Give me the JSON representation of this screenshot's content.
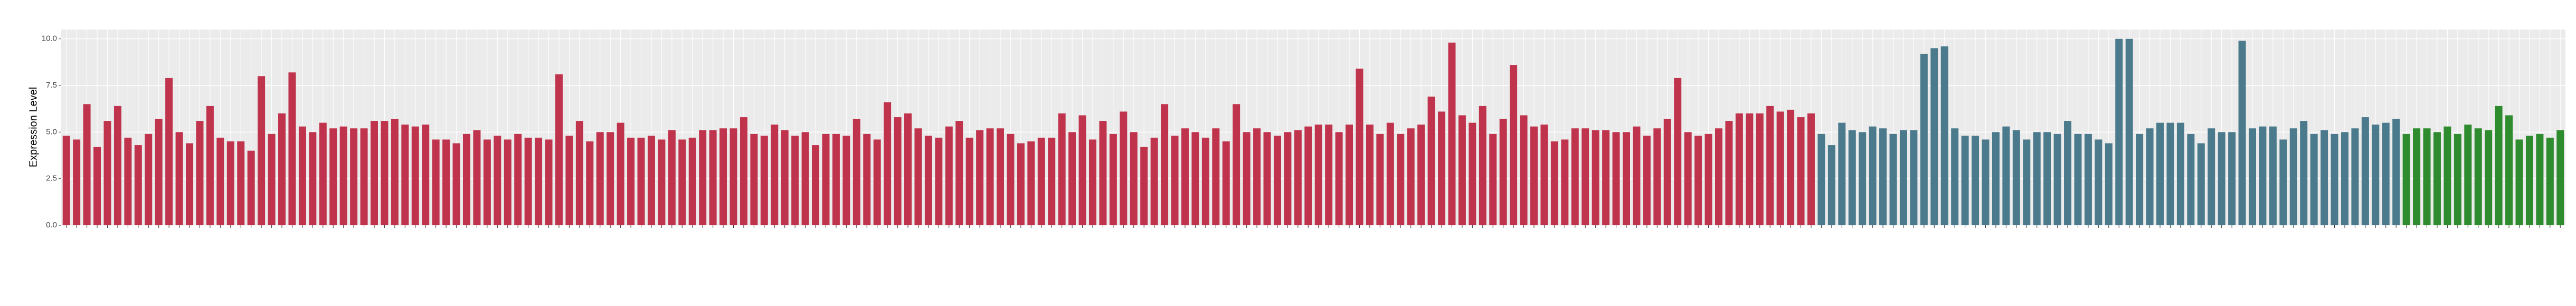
{
  "chart_data": {
    "type": "bar",
    "ylabel": "Expression Level",
    "ylim": [
      0,
      10.5
    ],
    "yticks": [
      {
        "value": 0,
        "label": "0.0"
      },
      {
        "value": 2.5,
        "label": "2.5"
      },
      {
        "value": 5,
        "label": "5.0"
      },
      {
        "value": 7.5,
        "label": "7.5"
      },
      {
        "value": 10,
        "label": "10.0"
      }
    ],
    "grid": true,
    "series": [
      {
        "color": "#c0334d",
        "values": [
          4.8,
          4.6,
          6.5,
          4.2,
          5.6,
          6.4,
          4.7,
          4.3,
          4.9,
          5.7,
          7.9,
          5.0,
          4.4,
          5.6,
          6.4,
          4.7,
          4.5,
          4.5,
          4.0,
          8.0,
          4.9,
          6.0,
          8.2,
          5.3,
          5.0,
          5.5,
          5.2,
          5.3,
          5.2,
          5.2,
          5.6,
          5.6,
          5.7,
          5.4,
          5.3,
          5.4,
          4.6,
          4.6,
          4.4,
          4.9,
          5.1,
          4.6,
          4.8,
          4.6,
          4.9,
          4.7,
          4.7,
          4.6,
          8.1,
          4.8,
          5.6,
          4.5,
          5.0,
          5.0,
          5.5,
          4.7,
          4.7,
          4.8,
          4.6,
          5.1,
          4.6,
          4.7,
          5.1,
          5.1,
          5.2,
          5.2,
          5.8,
          4.9,
          4.8,
          5.4,
          5.1,
          4.8,
          5.0,
          4.3,
          4.9,
          4.9,
          4.8,
          5.7,
          4.9,
          4.6,
          6.6,
          5.8,
          6.0,
          5.2,
          4.8,
          4.7,
          5.3,
          5.6,
          4.7,
          5.1,
          5.2,
          5.2,
          4.9,
          4.4,
          4.5,
          4.7,
          4.7,
          6.0,
          5.0,
          5.9,
          4.6,
          5.6,
          4.9,
          6.1,
          5.0,
          4.2,
          4.7,
          6.5,
          4.8,
          5.2,
          5.0,
          4.7,
          5.2,
          4.5,
          6.5,
          5.0,
          5.2,
          5.0,
          4.8,
          5.0,
          5.1,
          5.3,
          5.4,
          5.4,
          5.0,
          5.4,
          8.4,
          5.4,
          4.9,
          5.5,
          4.9,
          5.2,
          5.4,
          6.9,
          6.1,
          9.8,
          5.9,
          5.5,
          6.4,
          4.9,
          5.7,
          8.6,
          5.9,
          5.3,
          5.4,
          4.5,
          4.6,
          5.2,
          5.2,
          5.1,
          5.1,
          5.0,
          5.0,
          5.3,
          4.8,
          5.2,
          5.7,
          7.9,
          5.0,
          4.8,
          4.9,
          5.2,
          5.6,
          6.0,
          6.0,
          6.0,
          6.4,
          6.1,
          6.2,
          5.8,
          6.0
        ]
      },
      {
        "color": "#4a7a8c",
        "values": [
          4.9,
          4.3,
          5.5,
          5.1,
          5.0,
          5.3,
          5.2,
          4.9,
          5.1,
          5.1,
          9.2,
          9.5,
          9.6,
          5.2,
          4.8,
          4.8,
          4.6,
          5.0,
          5.3,
          5.1,
          4.6,
          5.0,
          5.0,
          4.9,
          5.6,
          4.9,
          4.9,
          4.6,
          4.4,
          10.0,
          10.0,
          4.9,
          5.2,
          5.5,
          5.5,
          5.5,
          4.9,
          4.4,
          5.2,
          5.0,
          5.0,
          9.9,
          5.2,
          5.3,
          5.3,
          4.6,
          5.2,
          5.6,
          4.9,
          5.1,
          4.9,
          5.0,
          5.2,
          5.8,
          5.4,
          5.5,
          5.7
        ]
      },
      {
        "color": "#2e8b2e",
        "values": [
          4.9,
          5.2,
          5.2,
          5.0,
          5.3,
          4.9,
          5.4,
          5.2,
          5.1,
          6.4,
          5.9,
          4.6,
          4.8,
          4.9,
          4.7,
          5.1
        ]
      }
    ]
  }
}
